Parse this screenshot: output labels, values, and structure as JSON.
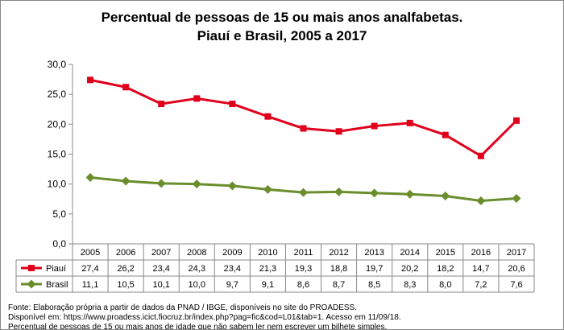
{
  "chart_data": {
    "type": "line",
    "title": "Percentual de pessoas de 15 ou mais anos analfabetas.",
    "subtitle": "Piauí e Brasil, 2005 a 2017",
    "categories": [
      "2005",
      "2006",
      "2007",
      "2008",
      "2009",
      "2010",
      "2011",
      "2012",
      "2013",
      "2014",
      "2015",
      "2016",
      "2017"
    ],
    "series": [
      {
        "name": "Piauí",
        "color": "#e0001b",
        "marker": "square",
        "values": [
          27.4,
          26.2,
          23.4,
          24.3,
          23.4,
          21.3,
          19.3,
          18.8,
          19.7,
          20.2,
          18.2,
          14.7,
          20.6
        ],
        "labels": [
          "27,4",
          "26,2",
          "23,4",
          "24,3",
          "23,4",
          "21,3",
          "19,3",
          "18,8",
          "19,7",
          "20,2",
          "18,2",
          "14,7",
          "20,6"
        ]
      },
      {
        "name": "Brasil",
        "color": "#6a8e2b",
        "marker": "diamond",
        "values": [
          11.1,
          10.5,
          10.1,
          10.0,
          9.7,
          9.1,
          8.6,
          8.7,
          8.5,
          8.3,
          8.0,
          7.2,
          7.6
        ],
        "labels": [
          "11,1",
          "10,5",
          "10,1",
          "10,0",
          "9,7",
          "9,1",
          "8,6",
          "8,7",
          "8,5",
          "8,3",
          "8,0",
          "7,2",
          "7,6"
        ]
      }
    ],
    "ylim": [
      0,
      30
    ],
    "yticks": [
      0,
      5,
      10,
      15,
      20,
      25,
      30
    ],
    "ytick_labels": [
      "0,0",
      "5,0",
      "10,0",
      "15,0",
      "20,0",
      "25,0",
      "30,0"
    ],
    "grid": false,
    "legend": "data-table"
  },
  "source": {
    "line1": "Fonte: Elaboração própria a partir de dados da PNAD / IBGE, disponíveis no site do PROADESS.",
    "line2": "Disponível em: https://www.proadess.icict.fiocruz.br/index.php?pag=fic&cod=L01&tab=1. Acesso em 11/09/18.",
    "line3": "Percentual de pessoas de 15 ou mais anos de idade que não sabem ler nem escrever um bilhete simples."
  }
}
